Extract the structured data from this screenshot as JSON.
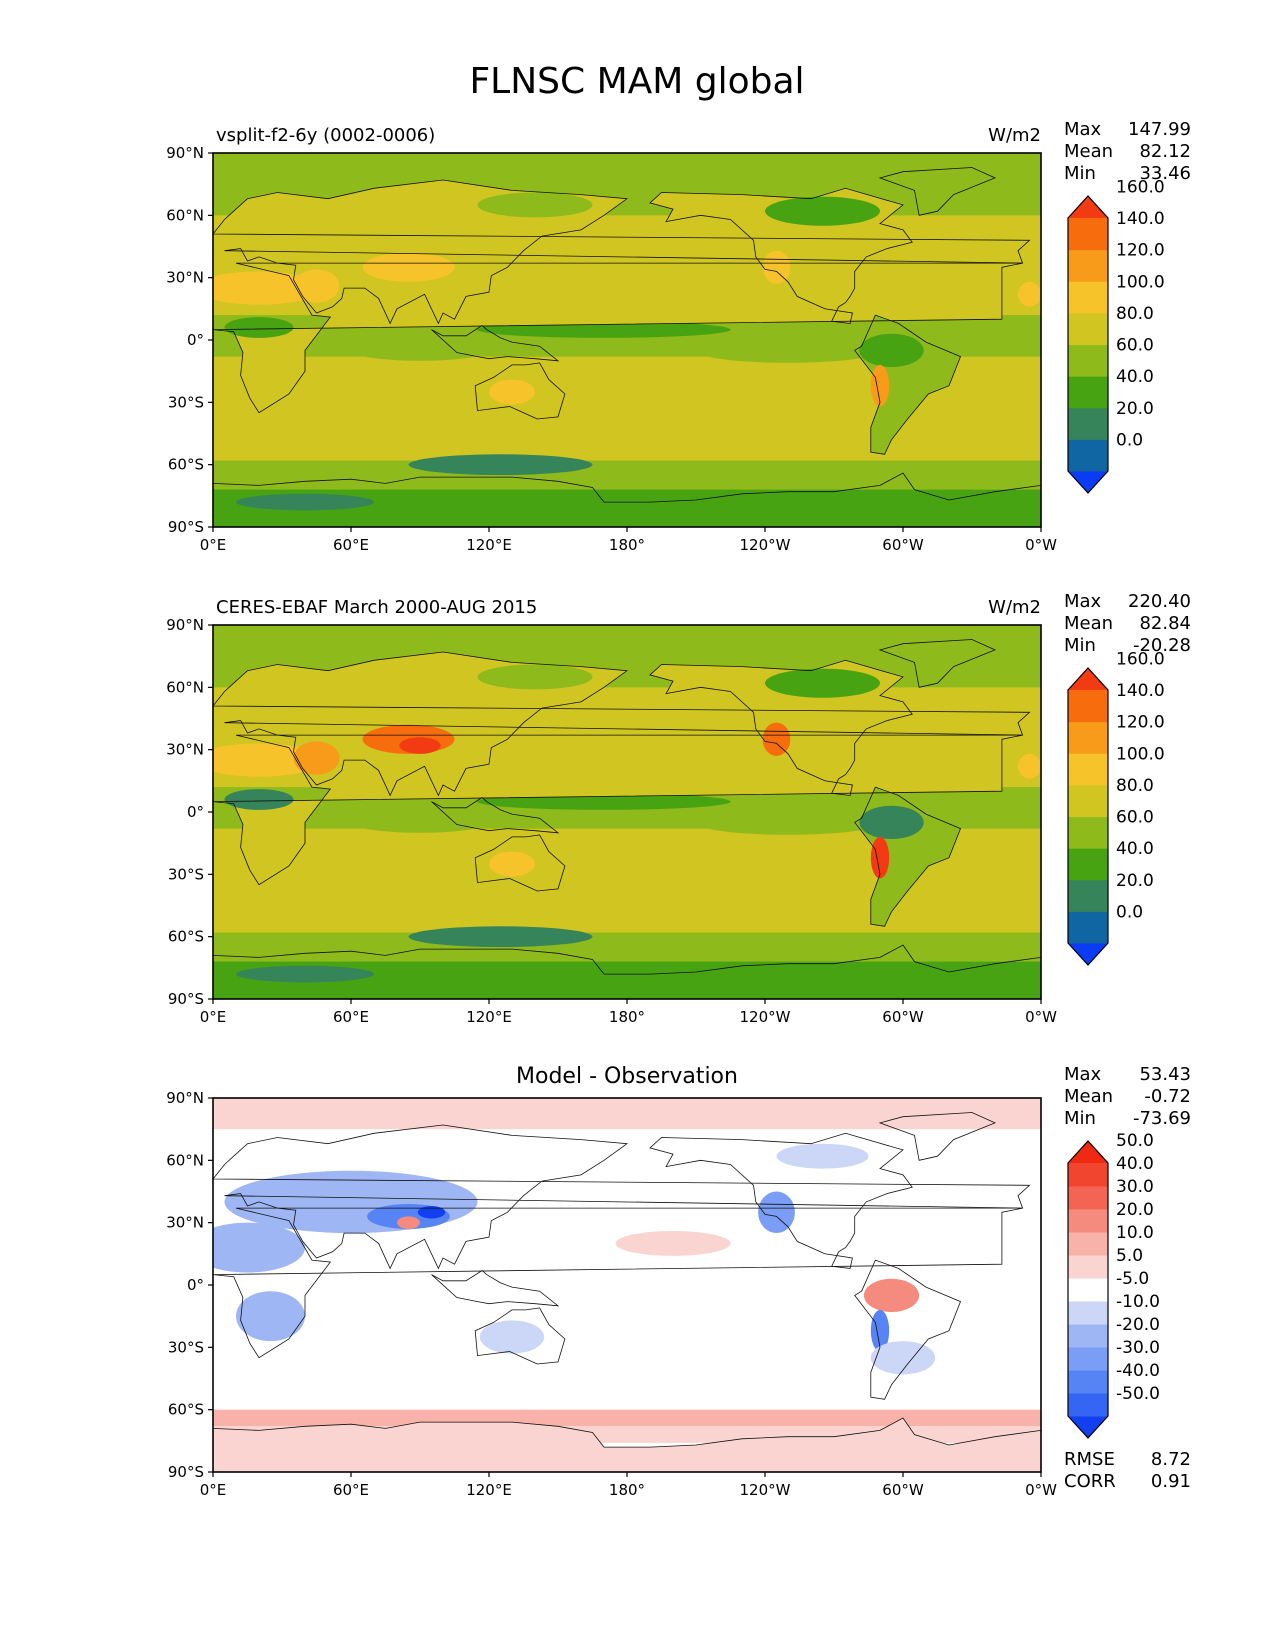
{
  "figure": {
    "title": "FLNSC MAM global"
  },
  "chart_data": [
    {
      "type": "heatmap",
      "panel": "test",
      "title_left": "vsplit-f2-6y (0002-0006)",
      "title_right": "W/m2",
      "stats": [
        {
          "label": "Max",
          "value": "147.99"
        },
        {
          "label": "Mean",
          "value": "82.12"
        },
        {
          "label": "Min",
          "value": "33.46"
        }
      ],
      "xticks": [
        "0°E",
        "60°E",
        "120°E",
        "180°",
        "120°W",
        "60°W",
        "0°W"
      ],
      "yticks": [
        "90°N",
        "60°N",
        "30°N",
        "0°",
        "30°S",
        "60°S",
        "90°S"
      ],
      "xlim": [
        0,
        360
      ],
      "ylim": [
        -90,
        90
      ],
      "colorbar": {
        "levels": [
          "0.0",
          "20.0",
          "40.0",
          "60.0",
          "80.0",
          "100.0",
          "120.0",
          "140.0",
          "160.0"
        ],
        "colors": [
          "#0a3cf5",
          "#1065a3",
          "#36845a",
          "#48a312",
          "#8fba1c",
          "#d0c521",
          "#f7c32b",
          "#f89a1a",
          "#f76d0e",
          "#f23b12"
        ]
      }
    },
    {
      "type": "heatmap",
      "panel": "reference",
      "title_left": "CERES-EBAF March 2000-AUG 2015",
      "title_right": "W/m2",
      "stats": [
        {
          "label": "Max",
          "value": "220.40"
        },
        {
          "label": "Mean",
          "value": "82.84"
        },
        {
          "label": "Min",
          "value": "-20.28"
        }
      ],
      "xticks": [
        "0°E",
        "60°E",
        "120°E",
        "180°",
        "120°W",
        "60°W",
        "0°W"
      ],
      "yticks": [
        "90°N",
        "60°N",
        "30°N",
        "0°",
        "30°S",
        "60°S",
        "90°S"
      ],
      "xlim": [
        0,
        360
      ],
      "ylim": [
        -90,
        90
      ],
      "colorbar": {
        "levels": [
          "0.0",
          "20.0",
          "40.0",
          "60.0",
          "80.0",
          "100.0",
          "120.0",
          "140.0",
          "160.0"
        ],
        "colors": [
          "#0a3cf5",
          "#1065a3",
          "#36845a",
          "#48a312",
          "#8fba1c",
          "#d0c521",
          "#f7c32b",
          "#f89a1a",
          "#f76d0e",
          "#f23b12"
        ]
      }
    },
    {
      "type": "heatmap",
      "panel": "difference",
      "title_center": "Model - Observation",
      "stats": [
        {
          "label": "Max",
          "value": "53.43"
        },
        {
          "label": "Mean",
          "value": "-0.72"
        },
        {
          "label": "Min",
          "value": "-73.69"
        }
      ],
      "extra_stats": [
        {
          "label": "RMSE",
          "value": "8.72"
        },
        {
          "label": "CORR",
          "value": "0.91"
        }
      ],
      "xticks": [
        "0°E",
        "60°E",
        "120°E",
        "180°",
        "120°W",
        "60°W",
        "0°W"
      ],
      "yticks": [
        "90°N",
        "60°N",
        "30°N",
        "0°",
        "30°S",
        "60°S",
        "90°S"
      ],
      "xlim": [
        0,
        360
      ],
      "ylim": [
        -90,
        90
      ],
      "colorbar": {
        "levels": [
          "-50.0",
          "-40.0",
          "-30.0",
          "-20.0",
          "-10.0",
          "-5.0",
          "5.0",
          "10.0",
          "20.0",
          "30.0",
          "40.0",
          "50.0"
        ],
        "colors": [
          "#1240f0",
          "#3466f3",
          "#5684f5",
          "#7a9ef5",
          "#9fb6f5",
          "#ccd7f8",
          "#ffffff",
          "#f9d4d0",
          "#f8b2aa",
          "#f58b7e",
          "#f36552",
          "#f24530",
          "#f02a12"
        ]
      }
    }
  ]
}
